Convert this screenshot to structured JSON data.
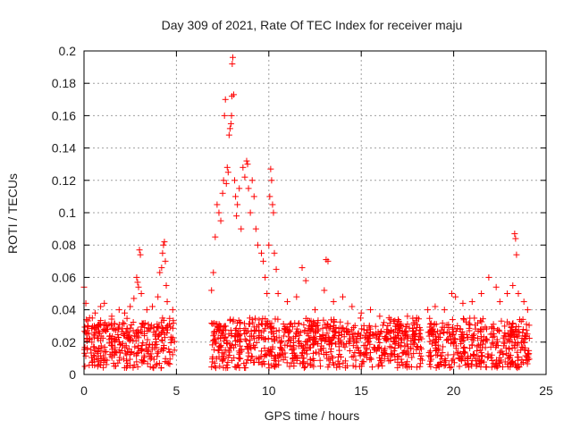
{
  "chart_data": {
    "type": "scatter",
    "title": "Day 309 of 2021, Rate Of TEC Index for receiver maju",
    "xlabel": "GPS time / hours",
    "ylabel": "ROTI / TECUs",
    "xlim": [
      0,
      25
    ],
    "ylim": [
      0,
      0.2
    ],
    "xticks": [
      "0",
      "5",
      "10",
      "15",
      "20",
      "25"
    ],
    "yticks": [
      "0",
      "0.02",
      "0.04",
      "0.06",
      "0.08",
      "0.1",
      "0.12",
      "0.14",
      "0.16",
      "0.18",
      "0.2"
    ],
    "grid": true,
    "marker": "+",
    "color": "#ff0000",
    "series": [
      {
        "name": "ROTI",
        "note": "dense bands 0–4.9 h, 6.9–18.3 h, 18.6–24.1 h; gap ~4.9–6.9 h",
        "points": [
          [
            0.0,
            0.054
          ],
          [
            0.1,
            0.044
          ],
          [
            0.05,
            0.005
          ],
          [
            0.3,
            0.035
          ],
          [
            0.6,
            0.038
          ],
          [
            0.9,
            0.042
          ],
          [
            1.1,
            0.044
          ],
          [
            1.5,
            0.036
          ],
          [
            1.9,
            0.04
          ],
          [
            2.2,
            0.038
          ],
          [
            2.5,
            0.042
          ],
          [
            2.7,
            0.047
          ],
          [
            2.85,
            0.06
          ],
          [
            2.9,
            0.057
          ],
          [
            2.95,
            0.054
          ],
          [
            3.0,
            0.077
          ],
          [
            3.05,
            0.074
          ],
          [
            3.1,
            0.05
          ],
          [
            3.4,
            0.04
          ],
          [
            3.7,
            0.042
          ],
          [
            4.0,
            0.048
          ],
          [
            4.1,
            0.063
          ],
          [
            4.2,
            0.066
          ],
          [
            4.25,
            0.075
          ],
          [
            4.3,
            0.08
          ],
          [
            4.35,
            0.082
          ],
          [
            4.4,
            0.07
          ],
          [
            4.45,
            0.055
          ],
          [
            4.5,
            0.045
          ],
          [
            4.8,
            0.04
          ],
          [
            6.9,
            0.052
          ],
          [
            7.0,
            0.063
          ],
          [
            7.1,
            0.085
          ],
          [
            7.2,
            0.105
          ],
          [
            7.3,
            0.1
          ],
          [
            7.4,
            0.095
          ],
          [
            7.5,
            0.112
          ],
          [
            7.55,
            0.12
          ],
          [
            7.6,
            0.16
          ],
          [
            7.65,
            0.17
          ],
          [
            7.7,
            0.118
          ],
          [
            7.75,
            0.128
          ],
          [
            7.8,
            0.125
          ],
          [
            7.85,
            0.148
          ],
          [
            7.9,
            0.152
          ],
          [
            7.95,
            0.155
          ],
          [
            7.98,
            0.16
          ],
          [
            8.0,
            0.172
          ],
          [
            8.02,
            0.192
          ],
          [
            8.05,
            0.196
          ],
          [
            8.1,
            0.173
          ],
          [
            8.15,
            0.12
          ],
          [
            8.2,
            0.11
          ],
          [
            8.25,
            0.098
          ],
          [
            8.3,
            0.105
          ],
          [
            8.4,
            0.115
          ],
          [
            8.5,
            0.09
          ],
          [
            8.6,
            0.128
          ],
          [
            8.7,
            0.122
          ],
          [
            8.8,
            0.132
          ],
          [
            8.85,
            0.13
          ],
          [
            8.9,
            0.115
          ],
          [
            9.0,
            0.1
          ],
          [
            9.1,
            0.12
          ],
          [
            9.2,
            0.11
          ],
          [
            9.3,
            0.09
          ],
          [
            9.4,
            0.08
          ],
          [
            9.6,
            0.075
          ],
          [
            9.7,
            0.07
          ],
          [
            9.8,
            0.06
          ],
          [
            9.9,
            0.05
          ],
          [
            10.0,
            0.08
          ],
          [
            10.05,
            0.11
          ],
          [
            10.1,
            0.127
          ],
          [
            10.15,
            0.12
          ],
          [
            10.2,
            0.105
          ],
          [
            10.25,
            0.1
          ],
          [
            10.3,
            0.075
          ],
          [
            10.4,
            0.065
          ],
          [
            10.5,
            0.05
          ],
          [
            11.0,
            0.045
          ],
          [
            11.5,
            0.048
          ],
          [
            11.8,
            0.066
          ],
          [
            12.0,
            0.058
          ],
          [
            12.5,
            0.04
          ],
          [
            13.0,
            0.052
          ],
          [
            13.1,
            0.071
          ],
          [
            13.2,
            0.07
          ],
          [
            13.5,
            0.045
          ],
          [
            14.0,
            0.048
          ],
          [
            14.5,
            0.042
          ],
          [
            15.0,
            0.038
          ],
          [
            15.5,
            0.04
          ],
          [
            16.0,
            0.036
          ],
          [
            16.5,
            0.035
          ],
          [
            17.0,
            0.034
          ],
          [
            17.5,
            0.036
          ],
          [
            18.0,
            0.035
          ],
          [
            18.6,
            0.04
          ],
          [
            19.0,
            0.042
          ],
          [
            19.5,
            0.04
          ],
          [
            19.9,
            0.05
          ],
          [
            20.1,
            0.048
          ],
          [
            20.5,
            0.044
          ],
          [
            21.0,
            0.045
          ],
          [
            21.5,
            0.05
          ],
          [
            21.9,
            0.06
          ],
          [
            22.3,
            0.054
          ],
          [
            22.5,
            0.045
          ],
          [
            22.9,
            0.05
          ],
          [
            23.2,
            0.055
          ],
          [
            23.3,
            0.087
          ],
          [
            23.35,
            0.084
          ],
          [
            23.4,
            0.074
          ],
          [
            23.5,
            0.05
          ],
          [
            23.8,
            0.045
          ],
          [
            24.0,
            0.04
          ]
        ]
      }
    ]
  }
}
